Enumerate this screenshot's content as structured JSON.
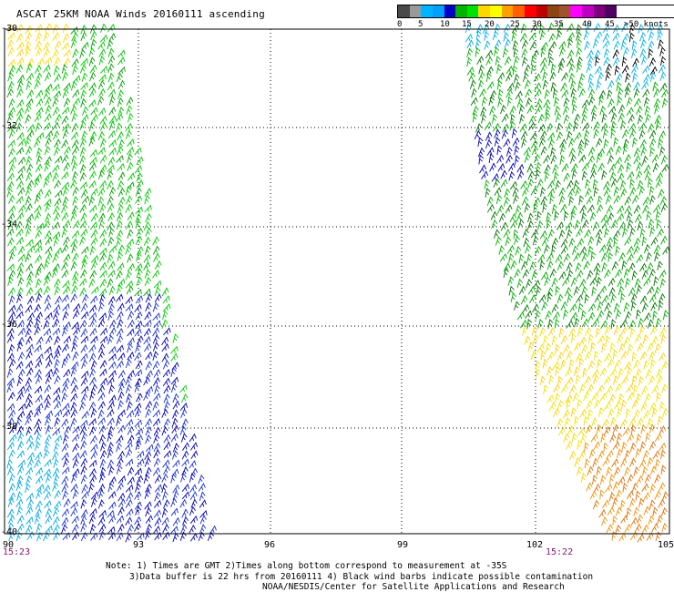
{
  "title": "ASCAT 25KM NOAA Winds 20160111 ascending",
  "legend": {
    "labels": [
      "0",
      "5",
      "10",
      "15",
      "20",
      "25",
      "30",
      "35",
      "40",
      "45",
      ">50 knots"
    ],
    "colors": [
      "#4a4a4a",
      "#9a9a9a",
      "#00b4ff",
      "#00a0ff",
      "#0000c8",
      "#00b400",
      "#00e000",
      "#ffd700",
      "#ffff00",
      "#ffa000",
      "#ff6000",
      "#ff0000",
      "#c00000",
      "#8b4513",
      "#a0522d",
      "#ff00ff",
      "#c000c0",
      "#800080",
      "#500060"
    ]
  },
  "lat_labels": [
    "-30",
    "-32",
    "-34",
    "-36",
    "-38",
    "-40"
  ],
  "lon_labels": [
    "90",
    "93",
    "96",
    "99",
    "102",
    "105"
  ],
  "time_labels": {
    "left": "15:23",
    "right": "15:22"
  },
  "notes": {
    "line1": "Note: 1) Times are GMT 2)Times along bottom correspond to measurement at -35S",
    "line2": "3)Data buffer is 22 hrs from 20160111 4) Black wind barbs indicate possible contamination",
    "line3": "NOAA/NESDIS/Center for Satellite Applications and Research"
  }
}
